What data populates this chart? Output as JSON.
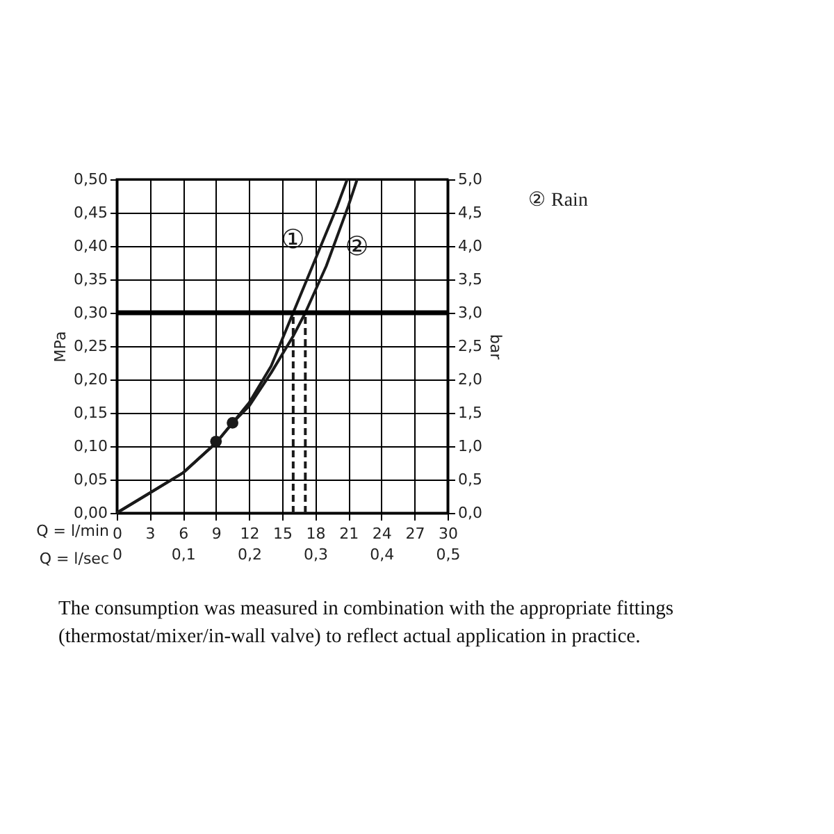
{
  "chart_data": {
    "type": "line",
    "xlabel": "Q = l/min",
    "x2label": "Q = l/sec",
    "ylabel": "MPa",
    "y2label": "bar",
    "xlim": [
      0,
      30
    ],
    "xticks": [
      0,
      3,
      6,
      9,
      12,
      15,
      18,
      21,
      24,
      27,
      30
    ],
    "x2lim": [
      0,
      0.5
    ],
    "x2ticks": [
      {
        "value": 0,
        "label": "0"
      },
      {
        "value": 0.1,
        "label": "0,1"
      },
      {
        "value": 0.2,
        "label": "0,2"
      },
      {
        "value": 0.3,
        "label": "0,3"
      },
      {
        "value": 0.4,
        "label": "0,4"
      },
      {
        "value": 0.5,
        "label": "0,5"
      }
    ],
    "ylim": [
      0,
      0.5
    ],
    "yticks": [
      {
        "value": 0,
        "label": "0,00"
      },
      {
        "value": 0.05,
        "label": "0,05"
      },
      {
        "value": 0.1,
        "label": "0,10"
      },
      {
        "value": 0.15,
        "label": "0,15"
      },
      {
        "value": 0.2,
        "label": "0,20"
      },
      {
        "value": 0.25,
        "label": "0,25"
      },
      {
        "value": 0.3,
        "label": "0,30"
      },
      {
        "value": 0.35,
        "label": "0,35"
      },
      {
        "value": 0.4,
        "label": "0,40"
      },
      {
        "value": 0.45,
        "label": "0,45"
      },
      {
        "value": 0.5,
        "label": "0,50"
      }
    ],
    "y2lim": [
      0,
      5
    ],
    "y2ticks": [
      {
        "value": 0,
        "label": "0,0"
      },
      {
        "value": 0.5,
        "label": "0,5"
      },
      {
        "value": 1,
        "label": "1,0"
      },
      {
        "value": 1.5,
        "label": "1,5"
      },
      {
        "value": 2,
        "label": "2,0"
      },
      {
        "value": 2.5,
        "label": "2,5"
      },
      {
        "value": 3,
        "label": "3,0"
      },
      {
        "value": 3.5,
        "label": "3,5"
      },
      {
        "value": 4,
        "label": "4,0"
      },
      {
        "value": 4.5,
        "label": "4,5"
      },
      {
        "value": 5,
        "label": "5,0"
      }
    ],
    "grid": true,
    "series": [
      {
        "name": "①",
        "color": "#1a1a1a",
        "x": [
          0,
          3,
          6,
          9,
          10.5,
          12,
          14,
          16,
          18,
          20,
          20.9
        ],
        "values": [
          0,
          0.03,
          0.06,
          0.105,
          0.135,
          0.165,
          0.22,
          0.3,
          0.38,
          0.46,
          0.5
        ]
      },
      {
        "name": "②",
        "color": "#1a1a1a",
        "x": [
          0,
          3,
          6,
          9,
          10.5,
          12,
          14,
          16,
          17.1,
          19,
          21,
          21.8
        ],
        "values": [
          0,
          0.03,
          0.06,
          0.105,
          0.135,
          0.16,
          0.21,
          0.265,
          0.3,
          0.37,
          0.46,
          0.5
        ]
      },
      {
        "type": "line",
        "color": "#1a1a1a",
        "line_style": "dashed",
        "x": [
          16,
          16
        ],
        "values": [
          0,
          0.3
        ]
      },
      {
        "type": "line",
        "color": "#1a1a1a",
        "line_style": "dashed",
        "x": [
          17.1,
          17.1
        ],
        "values": [
          0,
          0.3
        ]
      },
      {
        "type": "scatter",
        "color": "#1a1a1a",
        "marker": "circle",
        "x": [
          9,
          10.5
        ],
        "values": [
          0.107,
          0.135
        ]
      }
    ],
    "ref_lines": [
      {
        "axis": "y",
        "value": 0.3,
        "color": "#000000"
      }
    ],
    "annotations": [
      "② Rain",
      "The consumption was measured in combination with the appropriate fittings (thermostat/mixer/in-wall valve) to reflect actual application in practice."
    ]
  }
}
